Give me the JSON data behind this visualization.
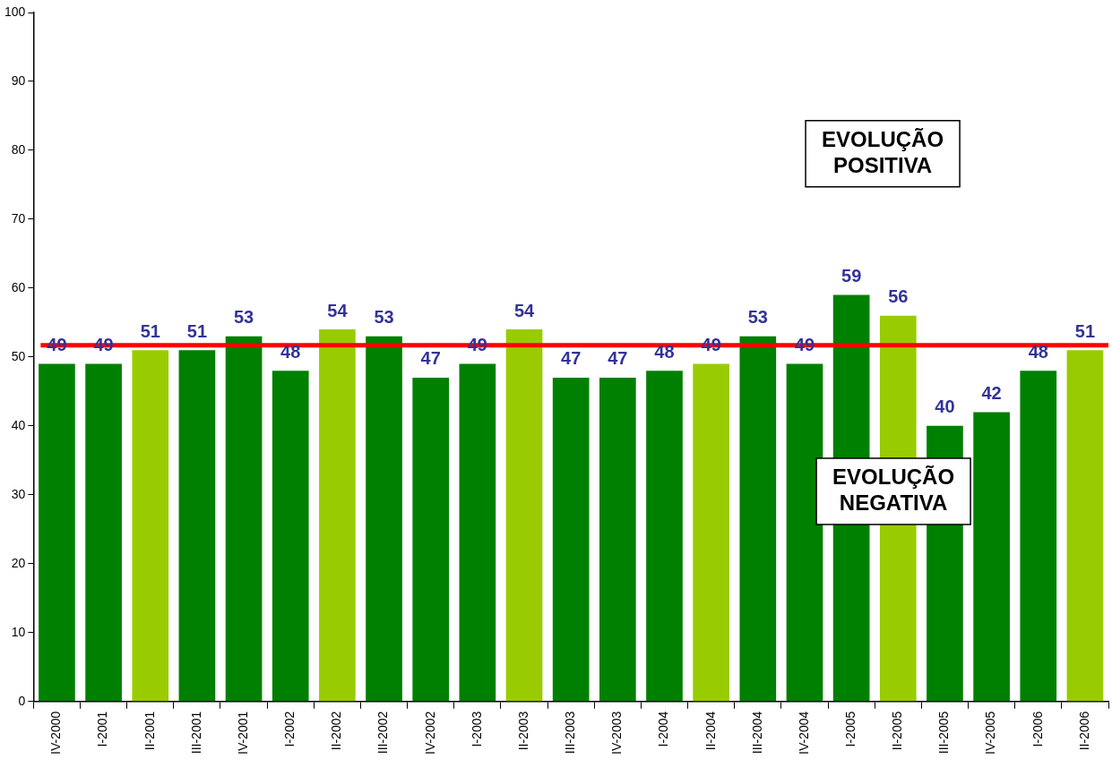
{
  "chart_data": {
    "type": "bar",
    "categories": [
      "IV-2000",
      "I-2001",
      "II-2001",
      "III-2001",
      "IV-2001",
      "I-2002",
      "II-2002",
      "III-2002",
      "IV-2002",
      "I-2003",
      "II-2003",
      "III-2003",
      "IV-2003",
      "I-2004",
      "II-2004",
      "III-2004",
      "IV-2004",
      "I-2005",
      "II-2005",
      "III-2005",
      "IV-2005",
      "I-2006",
      "II-2006"
    ],
    "values": [
      49,
      49,
      51,
      51,
      53,
      48,
      54,
      53,
      47,
      49,
      54,
      47,
      47,
      48,
      49,
      53,
      49,
      59,
      56,
      40,
      42,
      48,
      51
    ],
    "colors": [
      "#008000",
      "#008000",
      "#99cc00",
      "#008000",
      "#008000",
      "#008000",
      "#99cc00",
      "#008000",
      "#008000",
      "#008000",
      "#99cc00",
      "#008000",
      "#008000",
      "#008000",
      "#99cc00",
      "#008000",
      "#008000",
      "#008000",
      "#99cc00",
      "#008000",
      "#008000",
      "#008000",
      "#99cc00"
    ],
    "data_labels": true,
    "ylim": [
      0,
      100
    ],
    "yticks": [
      0,
      10,
      20,
      30,
      40,
      50,
      60,
      70,
      80,
      90,
      100
    ],
    "grid": false,
    "legend": false,
    "ref_lines": [
      {
        "axis": "y",
        "value": 51.7,
        "color": "#ff0000"
      }
    ],
    "annotations": [
      "EVOLUÇÃO\nPOSITIVA",
      "EVOLUÇÃO\nNEGATIVA"
    ]
  }
}
